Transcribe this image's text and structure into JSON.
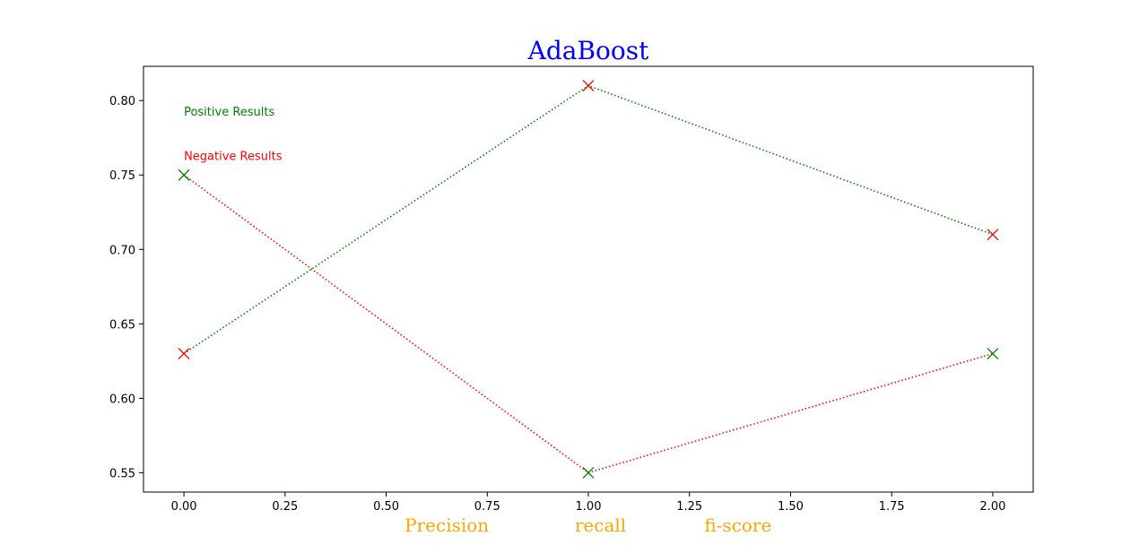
{
  "chart_data": {
    "type": "line",
    "title": "AdaBoost",
    "title_color": "#0000ff",
    "xlim": [
      -0.1,
      2.1
    ],
    "ylim": [
      0.537,
      0.823
    ],
    "x_ticks": [
      0.0,
      0.25,
      0.5,
      0.75,
      1.0,
      1.25,
      1.5,
      1.75,
      2.0
    ],
    "x_tick_labels": [
      "0.00",
      "0.25",
      "0.50",
      "0.75",
      "1.00",
      "1.25",
      "1.50",
      "1.75",
      "2.00"
    ],
    "y_ticks": [
      0.55,
      0.6,
      0.65,
      0.7,
      0.75,
      0.8
    ],
    "y_tick_labels": [
      "0.55",
      "0.60",
      "0.65",
      "0.70",
      "0.75",
      "0.80"
    ],
    "grid": false,
    "series": [
      {
        "x": [
          0,
          1,
          2
        ],
        "y": [
          0.63,
          0.81,
          0.71
        ],
        "line_color": "#008000",
        "marker_colors": [
          "#ff0000",
          "#ff0000",
          "#ff0000"
        ],
        "line_style": "dotted",
        "marker": "x"
      },
      {
        "x": [
          0,
          1,
          2
        ],
        "y": [
          0.75,
          0.55,
          0.63
        ],
        "line_color": "#ff0000",
        "marker_colors": [
          "#008000",
          "#008000",
          "#008000"
        ],
        "line_style": "dotted",
        "marker": "x"
      }
    ],
    "annotations": [
      {
        "text": "Positive Results",
        "x": 0.0,
        "y": 0.79,
        "color": "#008000"
      },
      {
        "text": "Negative Results",
        "x": 0.0,
        "y": 0.76,
        "color": "#ff0000"
      }
    ],
    "x_category_words": [
      {
        "text": "Precision",
        "x": 0.65
      },
      {
        "text": "recall",
        "x": 1.03
      },
      {
        "text": "fi-score",
        "x": 1.37
      }
    ],
    "x_category_color": "#ffa500"
  }
}
